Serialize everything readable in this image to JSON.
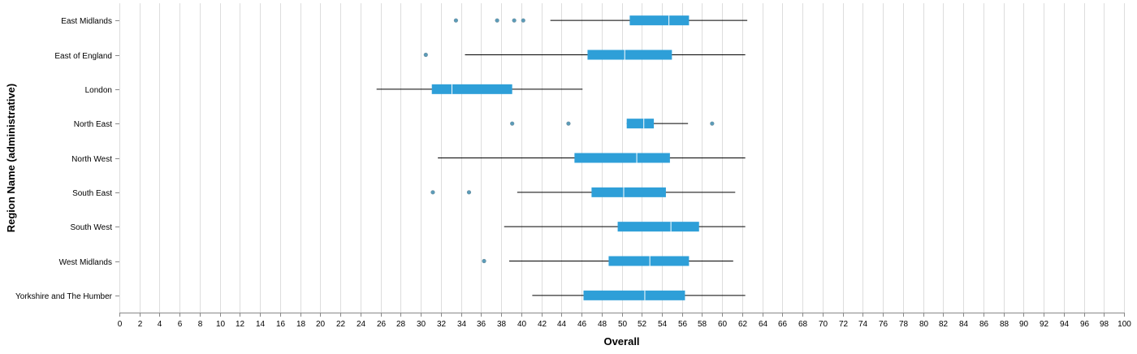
{
  "chart_data": {
    "type": "boxplot",
    "orientation": "horizontal",
    "xlabel": "Overall",
    "ylabel": "Region Name (administrative)",
    "xlim": [
      0,
      100
    ],
    "x_tick_step": 2,
    "grid": true,
    "box_color": "#2e9fd8",
    "median_color": "#ffffff",
    "whisker_color": "#000000",
    "outlier_color": "#5a9bb8",
    "grid_color": "#dddddd",
    "categories": [
      "East Midlands",
      "East of England",
      "London",
      "North East",
      "North West",
      "South East",
      "South West",
      "West Midlands",
      "Yorkshire and The Humber"
    ],
    "boxes": [
      {
        "category": "East Midlands",
        "min": 42.9,
        "q1": 50.8,
        "median": 54.7,
        "q3": 56.7,
        "max": 62.5,
        "outliers": [
          33.5,
          37.6,
          39.3,
          40.2
        ]
      },
      {
        "category": "East of England",
        "min": 34.4,
        "q1": 46.6,
        "median": 50.3,
        "q3": 55.0,
        "max": 62.3,
        "outliers": [
          30.5
        ]
      },
      {
        "category": "London",
        "min": 25.6,
        "q1": 31.1,
        "median": 33.1,
        "q3": 39.1,
        "max": 46.1,
        "outliers": []
      },
      {
        "category": "North East",
        "min": 50.5,
        "q1": 50.5,
        "median": 52.2,
        "q3": 53.2,
        "max": 56.6,
        "outliers": [
          39.1,
          44.7,
          59.0
        ]
      },
      {
        "category": "North West",
        "min": 31.7,
        "q1": 45.3,
        "median": 51.5,
        "q3": 54.8,
        "max": 62.3,
        "outliers": []
      },
      {
        "category": "South East",
        "min": 39.6,
        "q1": 47.0,
        "median": 50.2,
        "q3": 54.4,
        "max": 61.3,
        "outliers": [
          31.2,
          34.8
        ]
      },
      {
        "category": "South West",
        "min": 38.3,
        "q1": 49.6,
        "median": 54.9,
        "q3": 57.7,
        "max": 62.3,
        "outliers": []
      },
      {
        "category": "West Midlands",
        "min": 38.8,
        "q1": 48.7,
        "median": 52.8,
        "q3": 56.7,
        "max": 61.1,
        "outliers": [
          36.3
        ]
      },
      {
        "category": "Yorkshire and The Humber",
        "min": 41.1,
        "q1": 46.2,
        "median": 52.3,
        "q3": 56.3,
        "max": 62.3,
        "outliers": []
      }
    ]
  }
}
